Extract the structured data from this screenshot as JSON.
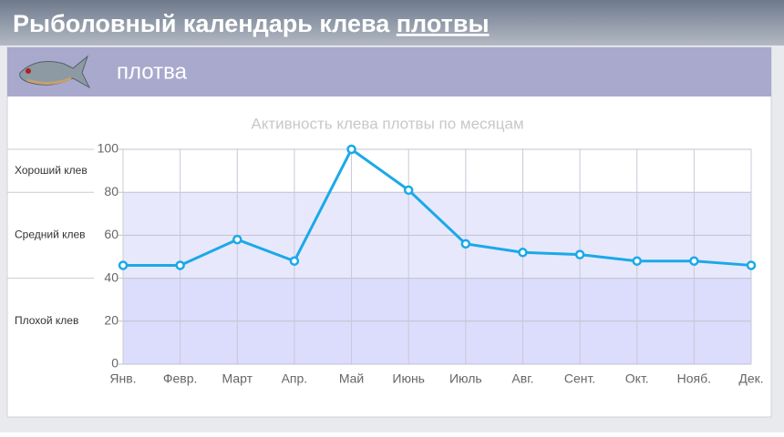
{
  "header": {
    "title": "Рыболовный календарь клева",
    "title_link": "плотвы"
  },
  "panel": {
    "title": "плотва"
  },
  "chart_data": {
    "type": "line",
    "title": "Активность клева плотвы по месяцам",
    "categories": [
      "Янв.",
      "Февр.",
      "Март",
      "Апр.",
      "Май",
      "Июнь",
      "Июль",
      "Авг.",
      "Сент.",
      "Окт.",
      "Нояб.",
      "Дек."
    ],
    "series": [
      {
        "color": "#1aa9e8",
        "values": [
          46,
          46,
          58,
          48,
          100,
          81,
          56,
          52,
          51,
          48,
          48,
          46
        ]
      }
    ],
    "ylim": [
      0,
      100
    ],
    "yticks": [
      0,
      20,
      40,
      60,
      80,
      100
    ],
    "grid": true,
    "bands": [
      {
        "label": "Плохой клев",
        "from": 0,
        "to": 40,
        "color": "#dcdcfc"
      },
      {
        "label": "Средний клев",
        "from": 40,
        "to": 80,
        "color": "#e8e8fd"
      },
      {
        "label": "Хороший клев",
        "from": 80,
        "to": 100,
        "color": "#ffffff"
      }
    ]
  }
}
